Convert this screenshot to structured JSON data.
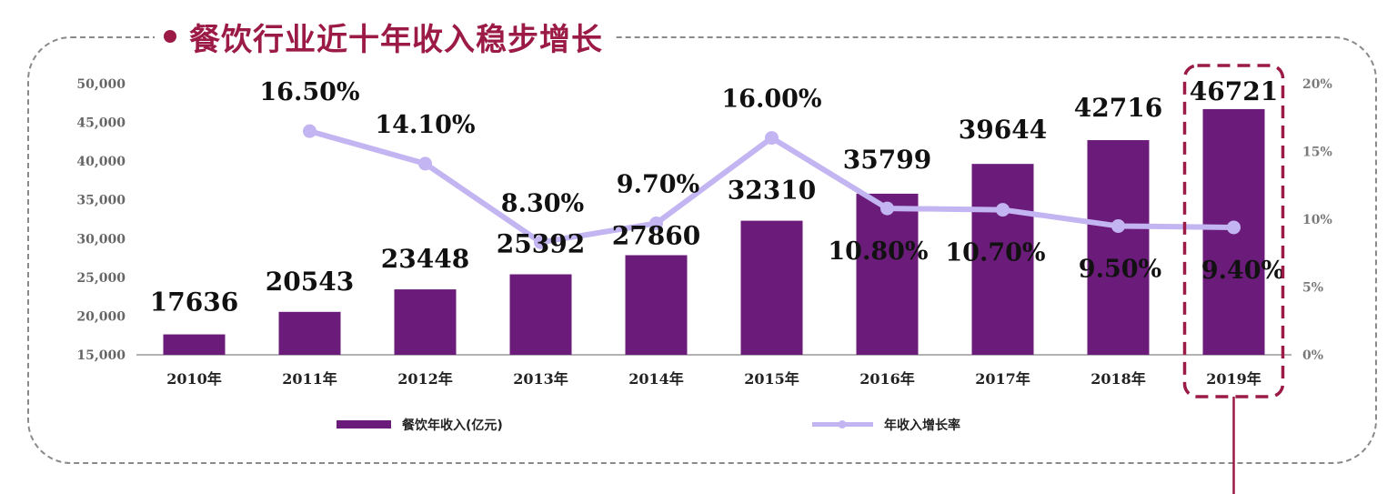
{
  "title": "餐饮行业近十年收入稳步增长",
  "colors": {
    "bar": "#6b1c7a",
    "line": "#c2b5f2",
    "title": "#9b1b46",
    "highlight": "#9b1b46"
  },
  "chart_data": {
    "type": "bar",
    "categories": [
      "2010年",
      "2011年",
      "2012年",
      "2013年",
      "2014年",
      "2015年",
      "2016年",
      "2017年",
      "2018年",
      "2019年"
    ],
    "series": [
      {
        "name": "餐饮年收入(亿元)",
        "type": "bar",
        "axis": "left",
        "values": [
          17636,
          20543,
          23448,
          25392,
          27860,
          32310,
          35799,
          39644,
          42716,
          46721
        ],
        "labels": [
          "17636",
          "20543",
          "23448",
          "25392",
          "27860",
          "32310",
          "35799",
          "39644",
          "42716",
          "46721"
        ]
      },
      {
        "name": "年收入增长率",
        "type": "line",
        "axis": "right",
        "values": [
          null,
          16.5,
          14.1,
          8.3,
          9.7,
          16.0,
          10.8,
          10.7,
          9.5,
          9.4
        ],
        "labels": [
          "",
          "16.50%",
          "14.10%",
          "8.30%",
          "9.70%",
          "16.00%",
          "10.80%",
          "10.70%",
          "9.50%",
          "9.40%"
        ]
      }
    ],
    "y_left": {
      "min": 15000,
      "max": 50000,
      "ticks": [
        "15,000",
        "20,000",
        "25,000",
        "30,000",
        "35,000",
        "40,000",
        "45,000",
        "50,000"
      ]
    },
    "y_right": {
      "min": 0,
      "max": 20,
      "ticks": [
        "0%",
        "5%",
        "10%",
        "15%",
        "20%"
      ]
    },
    "highlight_category": "2019年",
    "legend_position": "bottom",
    "grid": false
  }
}
